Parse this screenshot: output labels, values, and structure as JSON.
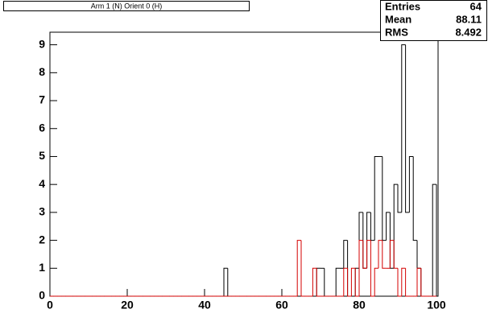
{
  "chart_data": {
    "type": "histogram",
    "title": "Arm 1 (N) Orient 0 (H)",
    "bins": [
      0,
      1,
      2,
      3,
      4,
      5,
      6,
      7,
      8,
      9,
      10,
      11,
      12,
      13,
      14,
      15,
      16,
      17,
      18,
      19,
      20,
      21,
      22,
      23,
      24,
      25,
      26,
      27,
      28,
      29,
      30,
      31,
      32,
      33,
      34,
      35,
      36,
      37,
      38,
      39,
      40,
      41,
      42,
      43,
      44,
      45,
      46,
      47,
      48,
      49,
      50,
      51,
      52,
      53,
      54,
      55,
      56,
      57,
      58,
      59,
      60,
      61,
      62,
      63,
      64,
      65,
      66,
      67,
      68,
      69,
      70,
      71,
      72,
      73,
      74,
      75,
      76,
      77,
      78,
      79,
      80,
      81,
      82,
      83,
      84,
      85,
      86,
      87,
      88,
      89,
      90,
      91,
      92,
      93,
      94,
      95,
      96,
      97,
      98,
      99,
      100
    ],
    "series": [
      {
        "color": "#000000",
        "values": [
          0,
          0,
          0,
          0,
          0,
          0,
          0,
          0,
          0,
          0,
          0,
          0,
          0,
          0,
          0,
          0,
          0,
          0,
          0,
          0,
          0,
          0,
          0,
          0,
          0,
          0,
          0,
          0,
          0,
          0,
          0,
          0,
          0,
          0,
          0,
          0,
          0,
          0,
          0,
          0,
          0,
          0,
          0,
          0,
          0,
          1,
          0,
          0,
          0,
          0,
          0,
          0,
          0,
          0,
          0,
          0,
          0,
          0,
          0,
          0,
          0,
          0,
          0,
          0,
          0,
          0,
          0,
          0,
          0,
          1,
          1,
          0,
          0,
          0,
          1,
          1,
          2,
          0,
          0,
          1,
          3,
          1,
          3,
          2,
          5,
          5,
          2,
          3,
          1,
          4,
          3,
          9,
          3,
          5,
          2,
          1,
          0,
          0,
          0,
          4
        ]
      },
      {
        "color": "#d40000",
        "values": [
          0,
          0,
          0,
          0,
          0,
          0,
          0,
          0,
          0,
          0,
          0,
          0,
          0,
          0,
          0,
          0,
          0,
          0,
          0,
          0,
          0,
          0,
          0,
          0,
          0,
          0,
          0,
          0,
          0,
          0,
          0,
          0,
          0,
          0,
          0,
          0,
          0,
          0,
          0,
          0,
          0,
          0,
          0,
          0,
          0,
          0,
          0,
          0,
          0,
          0,
          0,
          0,
          0,
          0,
          0,
          0,
          0,
          0,
          0,
          0,
          0,
          0,
          0,
          0,
          2,
          0,
          0,
          0,
          1,
          0,
          0,
          0,
          0,
          0,
          0,
          0,
          1,
          0,
          1,
          0,
          2,
          1,
          2,
          0,
          1,
          2,
          1,
          1,
          2,
          1,
          0,
          1,
          0,
          0,
          0,
          1,
          0,
          0,
          0,
          0
        ]
      }
    ],
    "xlim": [
      0,
      100
    ],
    "xticks": [
      0,
      20,
      40,
      60,
      80,
      100
    ],
    "ylim": [
      0,
      9.45
    ],
    "yticks": [
      0,
      1,
      2,
      3,
      4,
      5,
      6,
      7,
      8,
      9
    ],
    "stats": [
      {
        "label": "Entries",
        "value": 64
      },
      {
        "label": "Mean",
        "value": 88.11
      },
      {
        "label": "RMS",
        "value": 8.492
      }
    ]
  }
}
